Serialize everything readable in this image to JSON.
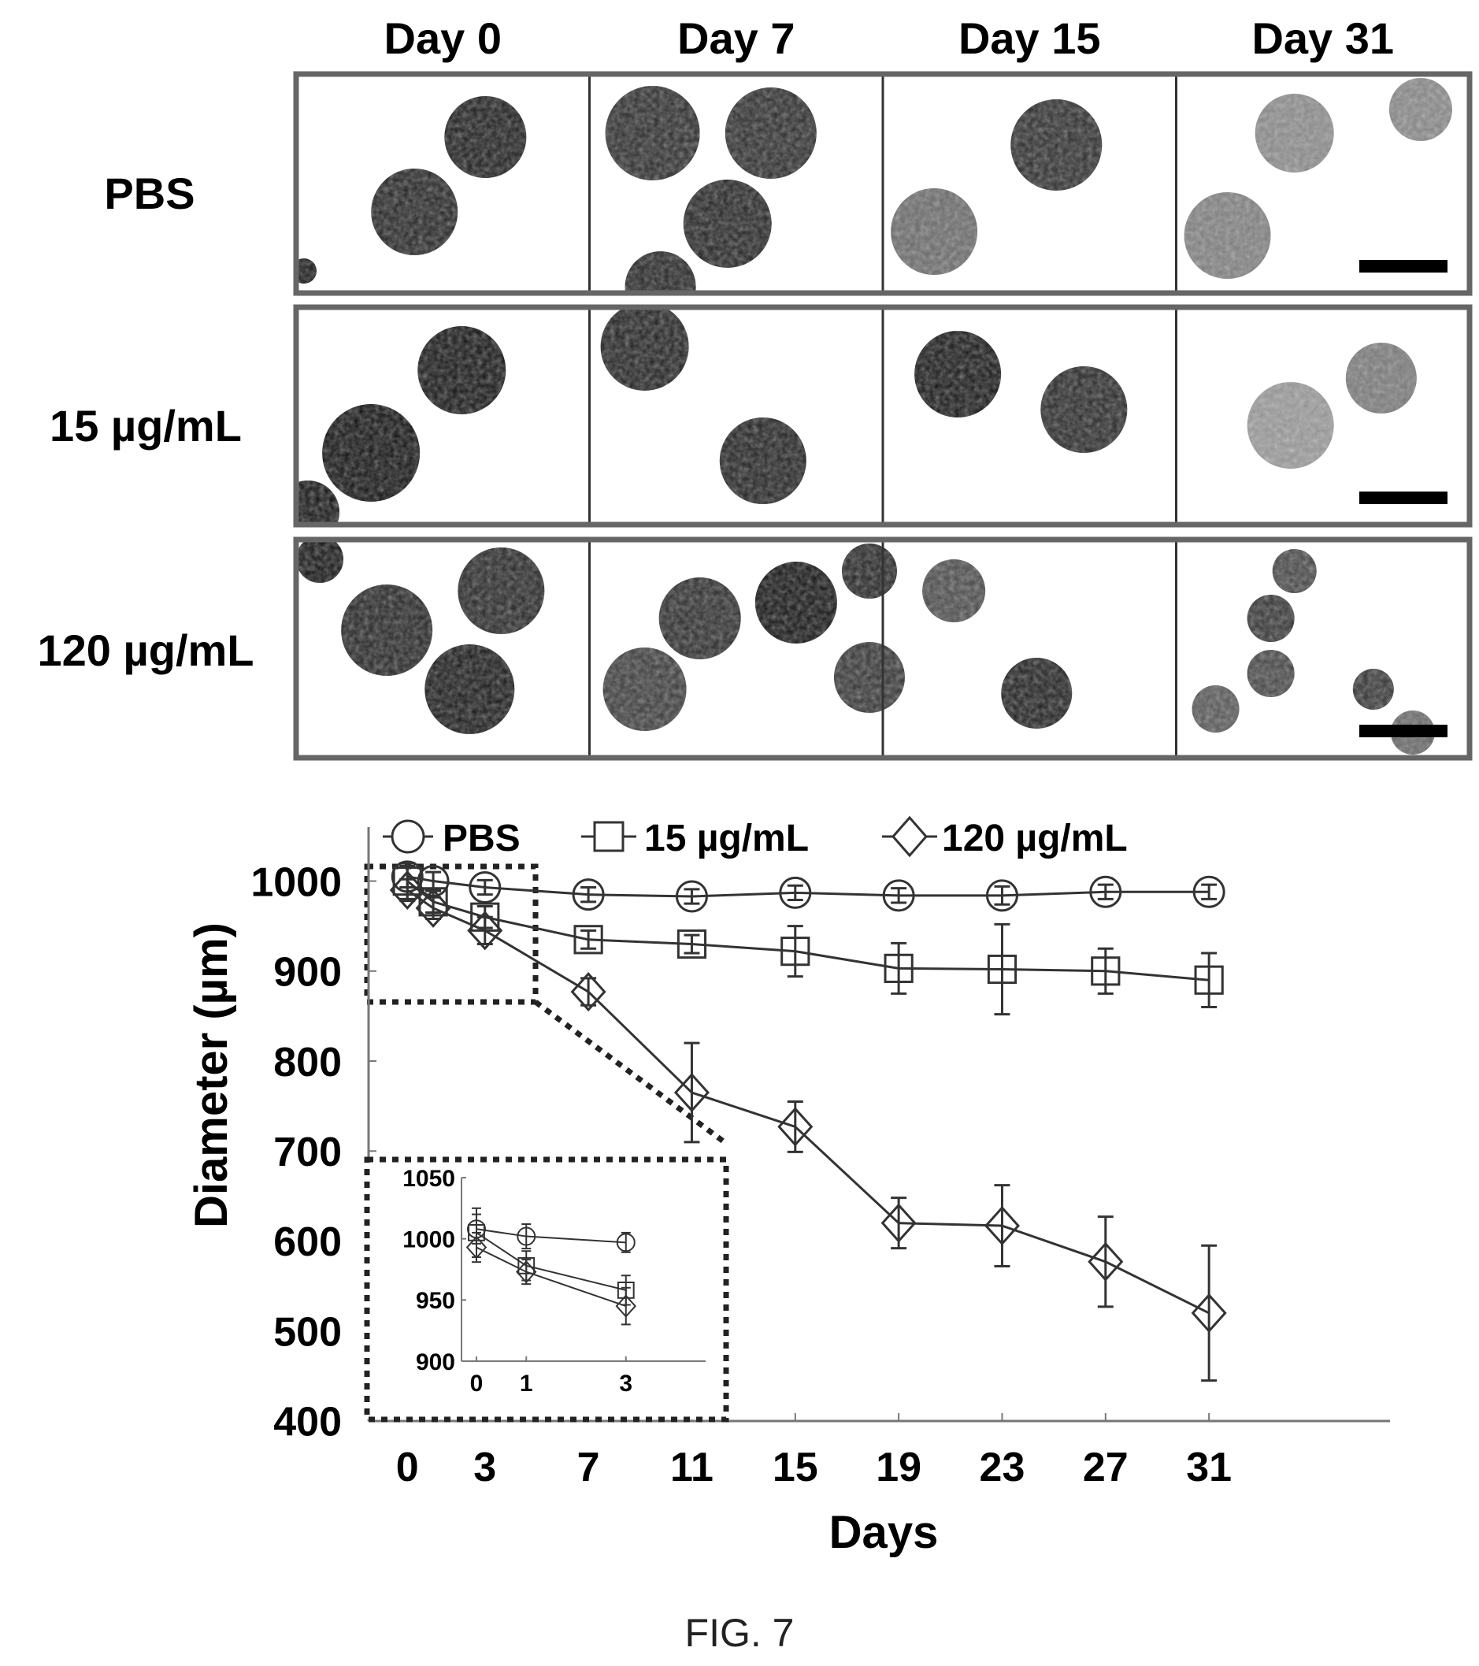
{
  "micrographs": {
    "columns": [
      "Day 0",
      "Day 7",
      "Day 15",
      "Day 31"
    ],
    "rows": [
      "PBS",
      "15 µg/mL",
      "120 µg/mL"
    ]
  },
  "caption": "FIG. 7",
  "chart_data": [
    {
      "type": "line",
      "xlabel": "Days",
      "ylabel": "Diameter (µm)",
      "x": [
        0,
        1,
        3,
        7,
        11,
        15,
        19,
        23,
        27,
        31
      ],
      "x_ticks": [
        0,
        3,
        7,
        11,
        15,
        19,
        23,
        27,
        31
      ],
      "y_ticks": [
        400,
        500,
        600,
        700,
        800,
        900,
        1000
      ],
      "ylim": [
        400,
        1060
      ],
      "xlim": [
        -1.5,
        38
      ],
      "legend_position": "top",
      "grid": false,
      "series": [
        {
          "name": "PBS",
          "marker": "circle",
          "values": [
            1005,
            1000,
            993,
            985,
            983,
            987,
            984,
            984,
            988,
            988
          ],
          "errors": [
            12,
            10,
            8,
            8,
            8,
            8,
            8,
            10,
            8,
            8
          ]
        },
        {
          "name": "15 µg/mL",
          "marker": "square",
          "values": [
            1000,
            977,
            960,
            935,
            930,
            922,
            903,
            902,
            900,
            890
          ],
          "errors": [
            20,
            12,
            12,
            10,
            10,
            28,
            28,
            50,
            25,
            30
          ]
        },
        {
          "name": "120 µg/mL",
          "marker": "diamond",
          "values": [
            990,
            970,
            945,
            877,
            765,
            727,
            620,
            617,
            577,
            520
          ],
          "errors": [
            12,
            12,
            15,
            15,
            55,
            28,
            28,
            45,
            50,
            75
          ]
        }
      ]
    },
    {
      "type": "line",
      "role": "inset",
      "x": [
        0,
        1,
        3
      ],
      "x_ticks": [
        0,
        1,
        3
      ],
      "y_ticks": [
        900,
        950,
        1000,
        1050
      ],
      "ylim": [
        900,
        1050
      ],
      "xlim": [
        -0.3,
        4.6
      ],
      "series": [
        {
          "name": "PBS",
          "marker": "circle",
          "values": [
            1008,
            1002,
            997
          ],
          "errors": [
            12,
            10,
            8
          ]
        },
        {
          "name": "15 µg/mL",
          "marker": "square",
          "values": [
            1005,
            978,
            958
          ],
          "errors": [
            20,
            12,
            12
          ]
        },
        {
          "name": "120 µg/mL",
          "marker": "diamond",
          "values": [
            993,
            973,
            945
          ],
          "errors": [
            12,
            10,
            15
          ]
        }
      ]
    }
  ]
}
